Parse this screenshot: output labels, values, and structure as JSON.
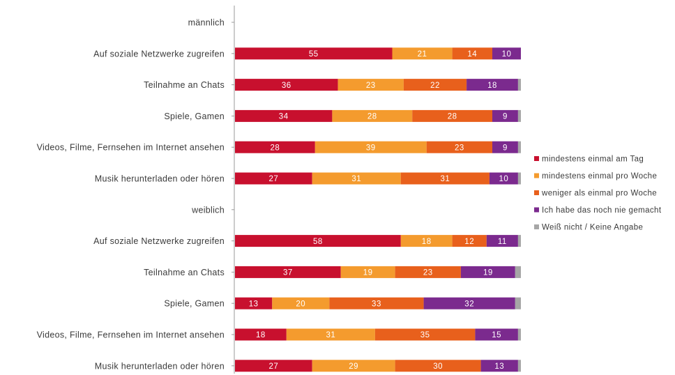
{
  "chart_data": {
    "type": "bar",
    "orientation": "horizontal",
    "stacked": true,
    "xlim": [
      0,
      100
    ],
    "grid": false,
    "legend_position": "right",
    "categories": [
      {
        "label": "männlich",
        "header": true
      },
      {
        "label": "Auf soziale Netzwerke zugreifen"
      },
      {
        "label": "Teilnahme an Chats"
      },
      {
        "label": "Spiele, Gamen"
      },
      {
        "label": "Videos, Filme, Fernsehen im Internet ansehen"
      },
      {
        "label": "Musik herunterladen oder hören"
      },
      {
        "label": "weiblich",
        "header": true
      },
      {
        "label": "Auf soziale Netzwerke zugreifen"
      },
      {
        "label": "Teilnahme an Chats"
      },
      {
        "label": "Spiele, Gamen"
      },
      {
        "label": "Videos, Filme, Fernsehen im Internet ansehen"
      },
      {
        "label": "Musik herunterladen oder hören"
      }
    ],
    "series": [
      {
        "name": "mindestens einmal am Tag",
        "color": "#c8102e",
        "values": [
          null,
          55,
          36,
          34,
          28,
          27,
          null,
          58,
          37,
          13,
          18,
          27
        ]
      },
      {
        "name": "mindestens einmal pro Woche",
        "color": "#f49b2e",
        "values": [
          null,
          21,
          23,
          28,
          39,
          31,
          null,
          18,
          19,
          20,
          31,
          29
        ]
      },
      {
        "name": "weniger als einmal pro Woche",
        "color": "#e8601c",
        "values": [
          null,
          14,
          22,
          28,
          23,
          31,
          null,
          12,
          23,
          33,
          35,
          30
        ]
      },
      {
        "name": "Ich habe das noch nie gemacht",
        "color": "#7b2a8e",
        "values": [
          null,
          10,
          18,
          9,
          9,
          10,
          null,
          11,
          19,
          32,
          15,
          13
        ]
      },
      {
        "name": "Weiß nicht / Keine Angabe",
        "color": "#a6a6a6",
        "values": [
          null,
          0,
          1,
          1,
          1,
          1,
          null,
          1,
          2,
          2,
          1,
          1
        ]
      }
    ]
  }
}
